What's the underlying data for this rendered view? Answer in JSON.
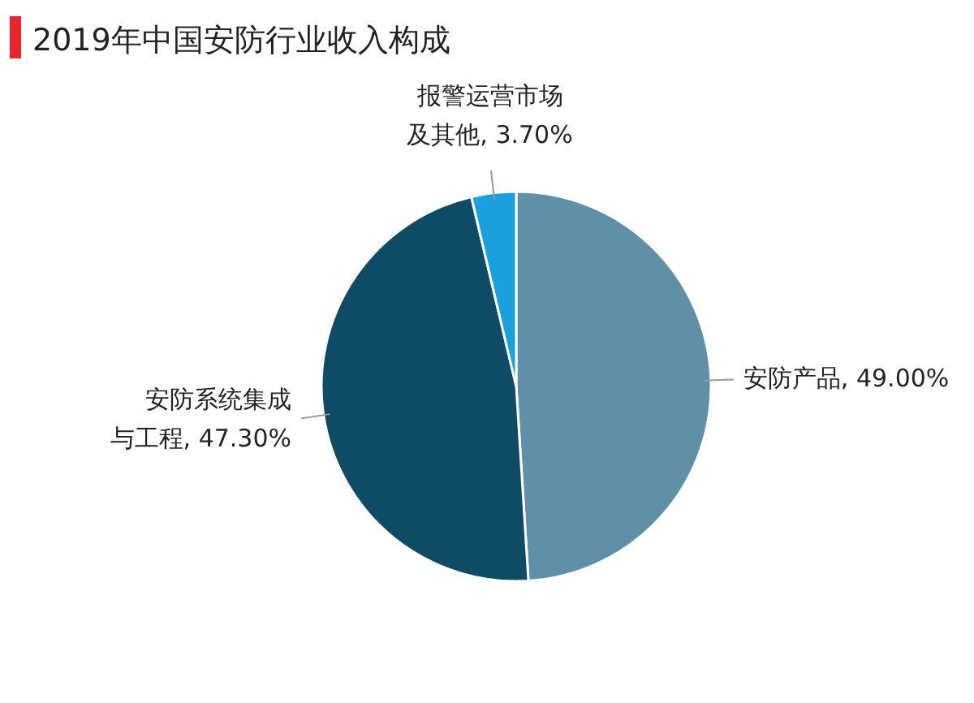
{
  "chart_data": {
    "type": "pie",
    "title": "2019年中国安防行业收入构成",
    "categories": [
      "安防产品",
      "安防系统集成与工程",
      "报警运营市场及其他"
    ],
    "values": [
      49.0,
      47.3,
      3.7
    ],
    "value_labels": [
      "49.00%",
      "47.30%",
      "3.70%"
    ],
    "colors": [
      "#5f90a8",
      "#0e4c66",
      "#1aa0dc"
    ],
    "legend": false
  }
}
